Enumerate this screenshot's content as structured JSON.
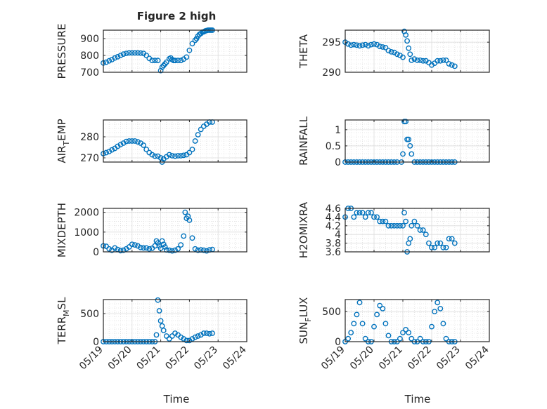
{
  "figure": {
    "title": "Figure 2 high",
    "marker_color": "#0072BD",
    "x_tick_labels": [
      "05/19",
      "05/20",
      "05/21",
      "05/22",
      "05/23",
      "05/24"
    ],
    "x_label": "Time"
  },
  "chart_data": [
    {
      "type": "scatter",
      "ylabel": "PRESSURE",
      "ylim": [
        700,
        950
      ],
      "yticks": [
        700,
        800,
        900
      ],
      "grid": true,
      "xlim": [
        0,
        5
      ],
      "x": [
        0.0,
        0.1,
        0.2,
        0.3,
        0.4,
        0.5,
        0.6,
        0.7,
        0.8,
        0.9,
        1.0,
        1.1,
        1.2,
        1.3,
        1.4,
        1.5,
        1.6,
        1.7,
        1.8,
        1.9,
        2.0,
        2.05,
        2.1,
        2.15,
        2.2,
        2.3,
        2.35,
        2.4,
        2.45,
        2.5,
        2.6,
        2.7,
        2.8,
        2.9,
        3.0,
        3.1,
        3.2,
        3.25,
        3.3,
        3.35,
        3.4,
        3.45,
        3.5,
        3.55,
        3.6,
        3.65,
        3.7,
        3.75,
        3.8
      ],
      "y": [
        755,
        760,
        768,
        775,
        785,
        792,
        800,
        808,
        812,
        815,
        815,
        815,
        815,
        814,
        812,
        800,
        782,
        770,
        770,
        770,
        710,
        730,
        740,
        750,
        760,
        780,
        785,
        775,
        770,
        770,
        770,
        770,
        778,
        790,
        830,
        870,
        890,
        900,
        915,
        925,
        930,
        938,
        940,
        945,
        948,
        950,
        950,
        950,
        950
      ]
    },
    {
      "type": "scatter",
      "ylabel": "THETA",
      "ylim": [
        290,
        297
      ],
      "yticks": [
        290,
        295
      ],
      "grid": true,
      "xlim": [
        0,
        5
      ],
      "x": [
        0.0,
        0.1,
        0.2,
        0.3,
        0.4,
        0.5,
        0.6,
        0.7,
        0.8,
        0.9,
        1.0,
        1.1,
        1.2,
        1.3,
        1.4,
        1.5,
        1.6,
        1.7,
        1.8,
        1.9,
        2.0,
        2.05,
        2.1,
        2.15,
        2.2,
        2.25,
        2.3,
        2.4,
        2.5,
        2.6,
        2.7,
        2.8,
        2.9,
        3.0,
        3.1,
        3.2,
        3.3,
        3.4,
        3.5,
        3.6,
        3.7,
        3.8
      ],
      "y": [
        295.0,
        294.7,
        294.5,
        294.6,
        294.5,
        294.4,
        294.5,
        294.6,
        294.4,
        294.6,
        294.7,
        294.6,
        294.3,
        294.2,
        294.1,
        293.6,
        293.4,
        293.3,
        293.0,
        292.8,
        292.5,
        296.8,
        296.2,
        295.2,
        294.0,
        293.0,
        292.0,
        292.2,
        292.0,
        292.0,
        291.9,
        291.9,
        291.6,
        291.2,
        291.5,
        291.9,
        291.9,
        292.0,
        292.0,
        291.4,
        291.2,
        291.0
      ]
    },
    {
      "type": "scatter",
      "ylabel": "AIR_TEMP",
      "ylim": [
        268,
        288
      ],
      "yticks": [
        270,
        280
      ],
      "grid": true,
      "xlim": [
        0,
        5
      ],
      "x": [
        0.0,
        0.1,
        0.2,
        0.3,
        0.4,
        0.5,
        0.6,
        0.7,
        0.8,
        0.9,
        1.0,
        1.1,
        1.2,
        1.3,
        1.4,
        1.5,
        1.6,
        1.7,
        1.8,
        1.9,
        2.0,
        2.05,
        2.1,
        2.2,
        2.3,
        2.4,
        2.5,
        2.6,
        2.7,
        2.8,
        2.9,
        3.0,
        3.1,
        3.2,
        3.3,
        3.4,
        3.5,
        3.6,
        3.7,
        3.8
      ],
      "y": [
        272.0,
        272.5,
        273.0,
        273.8,
        274.5,
        275.5,
        276.3,
        277.0,
        277.8,
        278.0,
        278.0,
        278.0,
        277.6,
        277.0,
        276.0,
        274.0,
        272.5,
        271.5,
        270.8,
        270.8,
        270.0,
        268.0,
        269.5,
        270.5,
        271.5,
        271.0,
        270.8,
        271.0,
        271.0,
        271.2,
        271.5,
        272.5,
        274.0,
        278.0,
        281.0,
        283.5,
        285.0,
        286.0,
        287.0,
        287.0
      ]
    },
    {
      "type": "scatter",
      "ylabel": "RAINFALL",
      "ylim": [
        0,
        1.3
      ],
      "yticks": [
        0,
        0.5,
        1
      ],
      "grid": true,
      "xlim": [
        0,
        5
      ],
      "x": [
        0.0,
        0.1,
        0.2,
        0.3,
        0.4,
        0.5,
        0.6,
        0.7,
        0.8,
        0.9,
        1.0,
        1.1,
        1.2,
        1.3,
        1.4,
        1.5,
        1.6,
        1.7,
        1.8,
        1.95,
        2.0,
        2.05,
        2.1,
        2.15,
        2.2,
        2.25,
        2.3,
        2.4,
        2.5,
        2.6,
        2.7,
        2.8,
        2.9,
        3.0,
        3.1,
        3.2,
        3.3,
        3.4,
        3.5,
        3.6,
        3.7,
        3.8
      ],
      "y": [
        0,
        0,
        0,
        0,
        0,
        0,
        0,
        0,
        0,
        0,
        0,
        0,
        0,
        0,
        0,
        0,
        0,
        0,
        0,
        0,
        0.25,
        1.25,
        1.25,
        0.7,
        0.7,
        0.5,
        0.25,
        0,
        0,
        0,
        0,
        0,
        0,
        0,
        0,
        0,
        0,
        0,
        0,
        0,
        0,
        0
      ]
    },
    {
      "type": "scatter",
      "ylabel": "MIXDEPTH",
      "ylim": [
        0,
        2200
      ],
      "yticks": [
        0,
        1000,
        2000
      ],
      "grid": true,
      "xlim": [
        0,
        5
      ],
      "x": [
        0.0,
        0.1,
        0.2,
        0.3,
        0.4,
        0.5,
        0.6,
        0.7,
        0.8,
        0.9,
        1.0,
        1.1,
        1.2,
        1.3,
        1.4,
        1.5,
        1.6,
        1.7,
        1.8,
        1.85,
        1.9,
        1.95,
        2.0,
        2.05,
        2.1,
        2.15,
        2.2,
        2.3,
        2.4,
        2.5,
        2.6,
        2.7,
        2.8,
        2.85,
        2.9,
        2.95,
        3.0,
        3.1,
        3.2,
        3.3,
        3.4,
        3.5,
        3.6,
        3.7,
        3.8
      ],
      "y": [
        300,
        280,
        150,
        80,
        200,
        120,
        60,
        80,
        150,
        250,
        380,
        350,
        300,
        220,
        200,
        200,
        150,
        180,
        300,
        550,
        450,
        300,
        180,
        550,
        380,
        250,
        100,
        80,
        50,
        80,
        150,
        350,
        800,
        2000,
        1700,
        1800,
        1600,
        700,
        150,
        80,
        100,
        80,
        50,
        100,
        120
      ]
    },
    {
      "type": "scatter",
      "ylabel": "H2OMIXRA",
      "ylim": [
        3.6,
        4.6
      ],
      "yticks": [
        3.6,
        3.8,
        4,
        4.2,
        4.4,
        4.6
      ],
      "grid": true,
      "xlim": [
        0,
        5
      ],
      "x": [
        0.0,
        0.1,
        0.2,
        0.3,
        0.4,
        0.5,
        0.6,
        0.7,
        0.8,
        0.9,
        1.0,
        1.1,
        1.2,
        1.3,
        1.4,
        1.5,
        1.6,
        1.7,
        1.8,
        1.9,
        2.0,
        2.05,
        2.1,
        2.15,
        2.2,
        2.25,
        2.3,
        2.4,
        2.5,
        2.6,
        2.7,
        2.8,
        2.9,
        3.0,
        3.1,
        3.2,
        3.3,
        3.4,
        3.5,
        3.6,
        3.7,
        3.8
      ],
      "y": [
        4.4,
        4.6,
        4.6,
        4.4,
        4.5,
        4.5,
        4.5,
        4.4,
        4.5,
        4.5,
        4.4,
        4.4,
        4.3,
        4.3,
        4.3,
        4.2,
        4.2,
        4.2,
        4.2,
        4.2,
        4.2,
        4.5,
        4.3,
        3.6,
        3.8,
        3.9,
        4.2,
        4.3,
        4.2,
        4.1,
        4.1,
        4.0,
        3.8,
        3.7,
        3.7,
        3.8,
        3.8,
        3.7,
        3.7,
        3.9,
        3.9,
        3.8
      ]
    },
    {
      "type": "scatter",
      "ylabel": "TERR_MSL",
      "ylim": [
        0,
        750
      ],
      "yticks": [
        0,
        500
      ],
      "grid": true,
      "xlim": [
        0,
        5
      ],
      "x": [
        0.0,
        0.1,
        0.2,
        0.3,
        0.4,
        0.5,
        0.6,
        0.7,
        0.8,
        0.9,
        1.0,
        1.1,
        1.2,
        1.3,
        1.4,
        1.5,
        1.6,
        1.7,
        1.8,
        1.85,
        1.9,
        1.95,
        2.0,
        2.05,
        2.1,
        2.2,
        2.3,
        2.4,
        2.5,
        2.6,
        2.7,
        2.8,
        2.9,
        3.0,
        3.1,
        3.2,
        3.3,
        3.4,
        3.5,
        3.6,
        3.7,
        3.8
      ],
      "y": [
        0,
        0,
        0,
        0,
        0,
        0,
        0,
        0,
        0,
        0,
        0,
        0,
        0,
        0,
        0,
        0,
        0,
        0,
        0,
        120,
        740,
        550,
        370,
        280,
        200,
        100,
        50,
        100,
        150,
        120,
        80,
        50,
        20,
        20,
        50,
        80,
        100,
        120,
        150,
        150,
        140,
        150
      ]
    },
    {
      "type": "scatter",
      "ylabel": "SUN_FLUX",
      "ylim": [
        0,
        700
      ],
      "yticks": [
        0,
        500
      ],
      "grid": true,
      "xlim": [
        0,
        5
      ],
      "x": [
        0.0,
        0.1,
        0.2,
        0.3,
        0.4,
        0.5,
        0.6,
        0.7,
        0.8,
        0.9,
        1.0,
        1.1,
        1.2,
        1.3,
        1.4,
        1.5,
        1.6,
        1.7,
        1.8,
        1.9,
        2.0,
        2.1,
        2.2,
        2.3,
        2.4,
        2.5,
        2.6,
        2.7,
        2.8,
        2.9,
        3.0,
        3.1,
        3.2,
        3.3,
        3.4,
        3.5,
        3.6,
        3.7,
        3.8
      ],
      "y": [
        0,
        50,
        150,
        300,
        450,
        650,
        300,
        50,
        0,
        0,
        250,
        450,
        600,
        550,
        300,
        100,
        0,
        0,
        0,
        50,
        150,
        200,
        150,
        50,
        0,
        0,
        50,
        0,
        0,
        0,
        250,
        500,
        650,
        550,
        300,
        50,
        0,
        0,
        0
      ]
    }
  ]
}
